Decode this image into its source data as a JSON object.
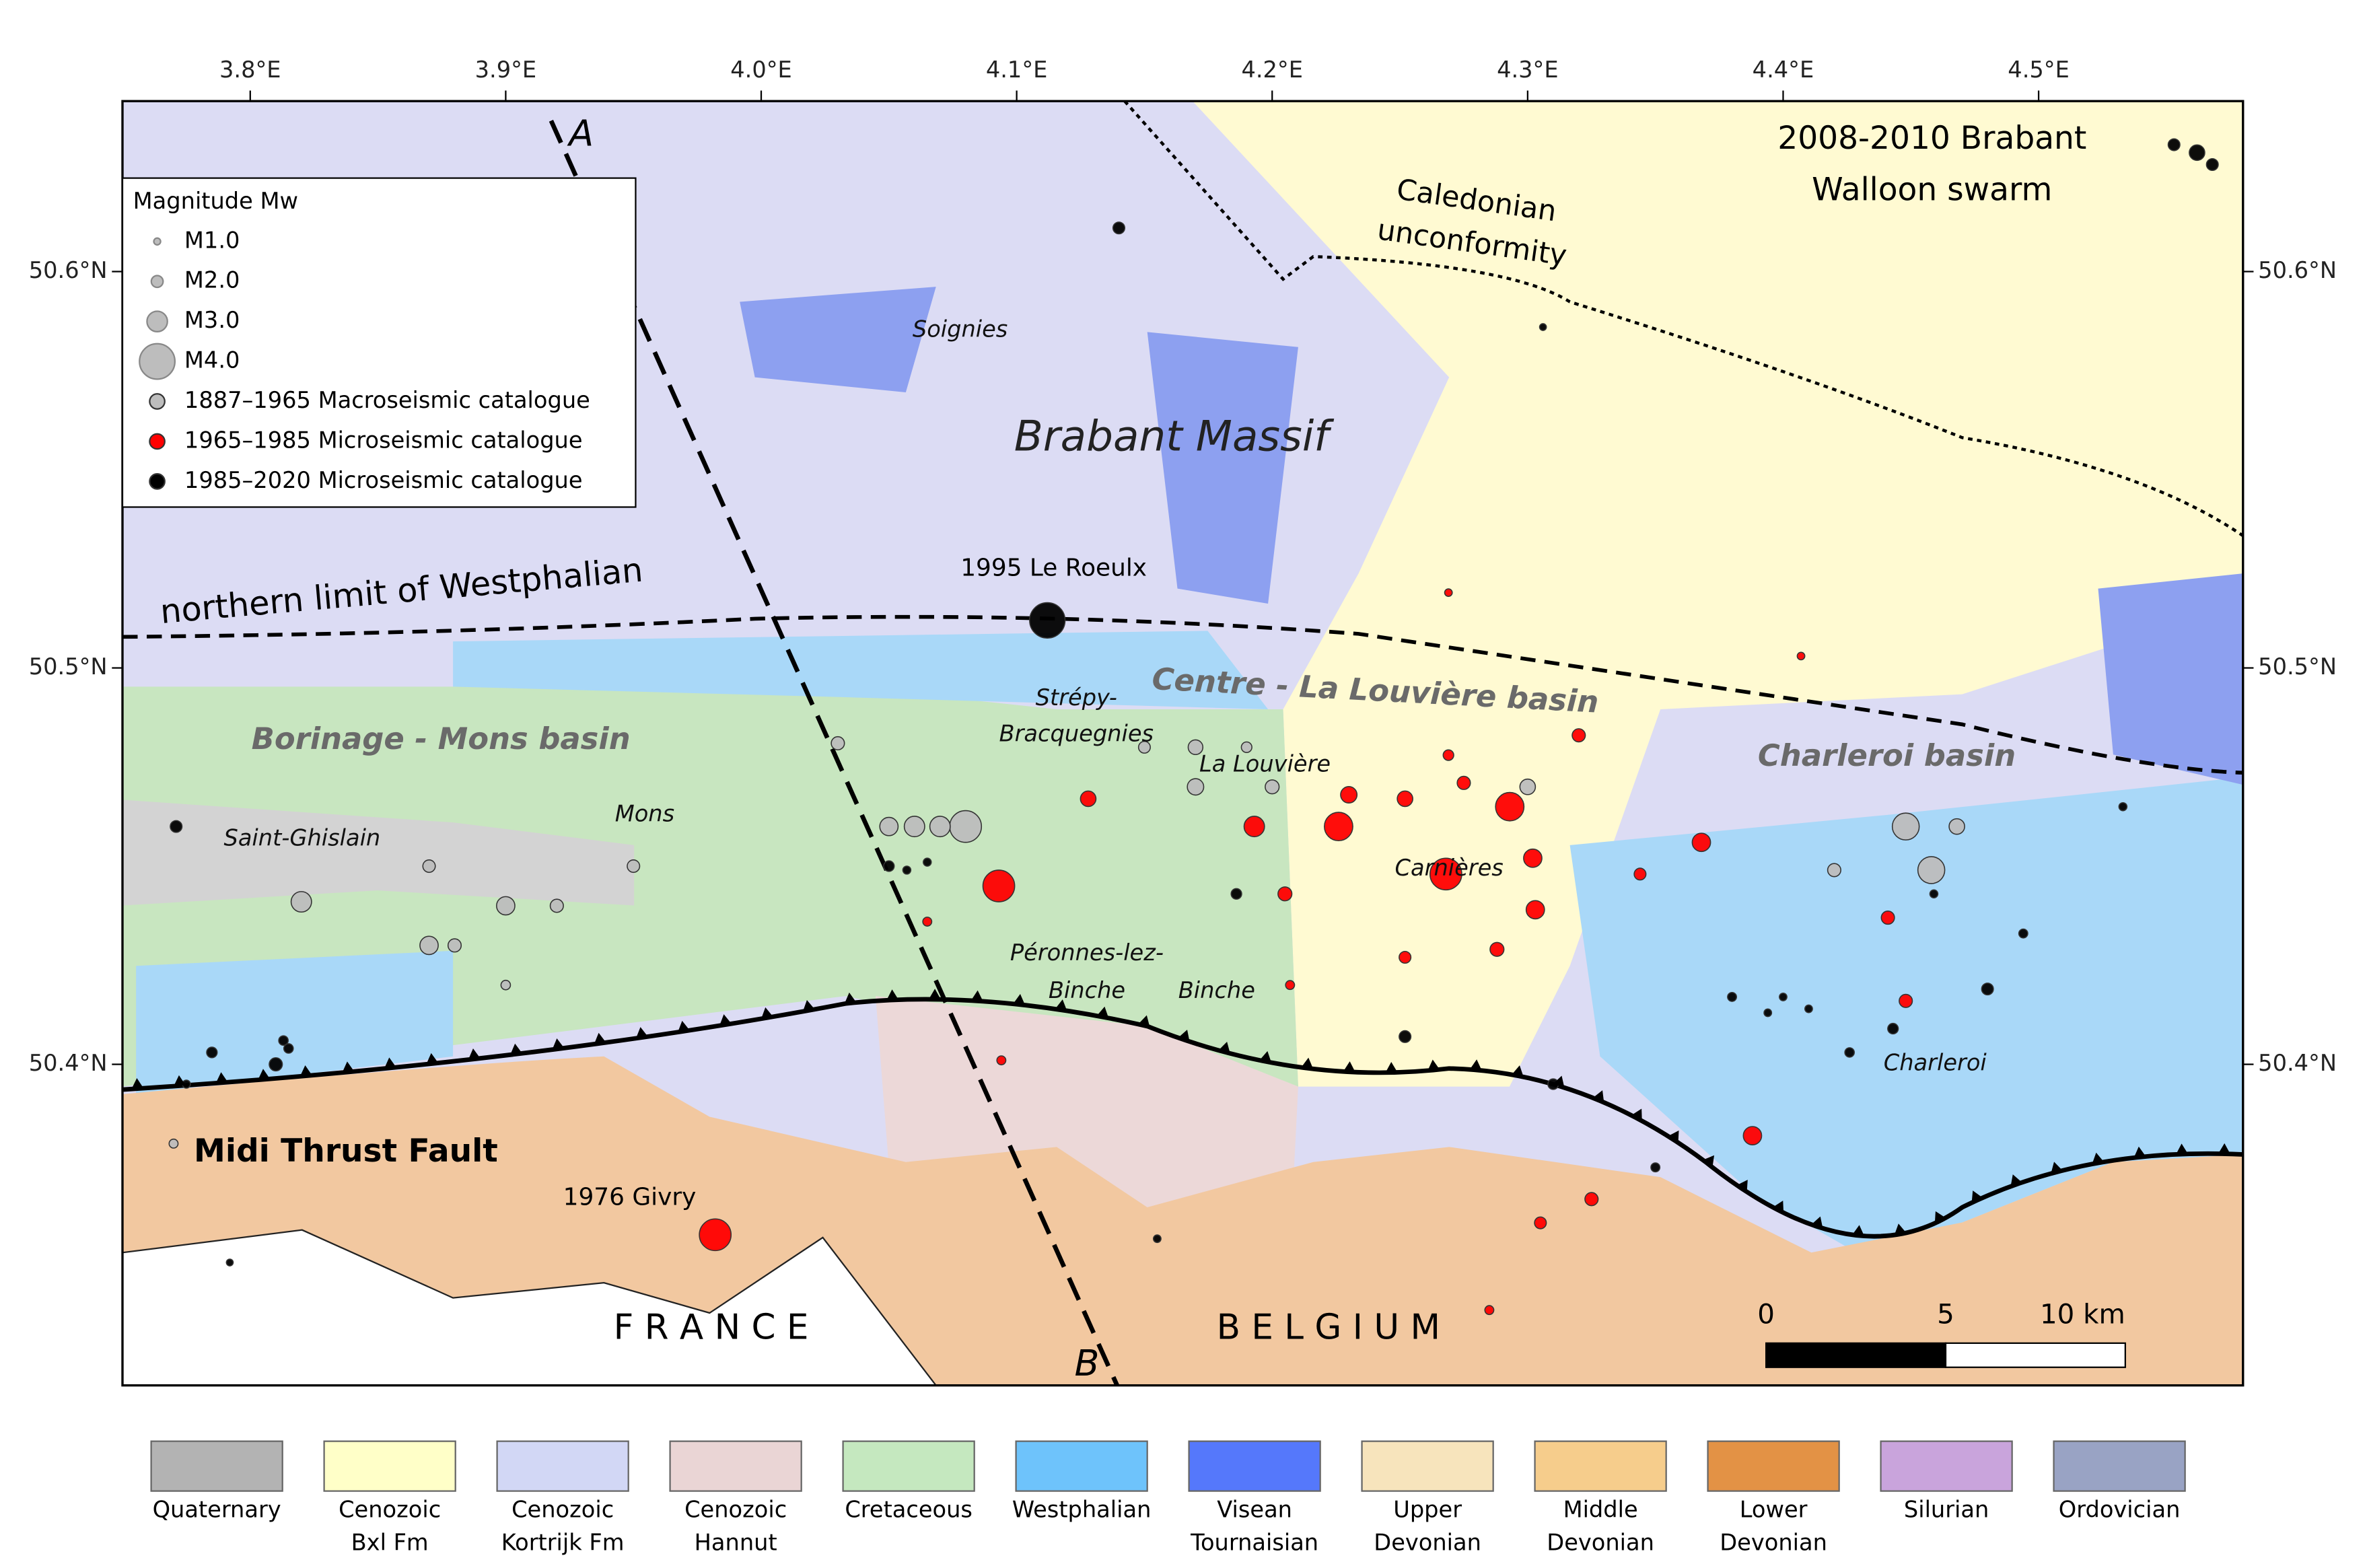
{
  "map": {
    "lon_range": [
      3.75,
      4.58
    ],
    "lat_range": [
      50.319,
      50.643
    ],
    "lon_ticks": [
      {
        "value": 3.8,
        "label": "3.8°E"
      },
      {
        "value": 3.9,
        "label": "3.9°E"
      },
      {
        "value": 4.0,
        "label": "4.0°E"
      },
      {
        "value": 4.1,
        "label": "4.1°E"
      },
      {
        "value": 4.2,
        "label": "4.2°E"
      },
      {
        "value": 4.3,
        "label": "4.3°E"
      },
      {
        "value": 4.4,
        "label": "4.4°E"
      },
      {
        "value": 4.5,
        "label": "4.5°E"
      }
    ],
    "lat_ticks": [
      {
        "value": 50.4,
        "label": "50.4°N"
      },
      {
        "value": 50.5,
        "label": "50.5°N"
      },
      {
        "value": 50.6,
        "label": "50.6°N"
      }
    ],
    "events": [
      [
        4.08,
        50.46,
        3.8,
        0
      ],
      [
        4.448,
        50.46,
        3.5,
        0
      ],
      [
        4.458,
        50.449,
        3.5,
        0
      ],
      [
        4.06,
        50.46,
        3.0,
        0
      ],
      [
        4.07,
        50.46,
        3.0,
        0
      ],
      [
        3.82,
        50.441,
        3.0,
        0
      ],
      [
        3.87,
        50.43,
        2.8,
        0
      ],
      [
        3.9,
        50.44,
        2.8,
        0
      ],
      [
        4.05,
        50.46,
        2.8,
        0
      ],
      [
        4.3,
        50.47,
        2.5,
        0
      ],
      [
        4.17,
        50.48,
        2.4,
        0
      ],
      [
        4.17,
        50.47,
        2.6,
        0
      ],
      [
        4.2,
        50.47,
        2.3,
        0
      ],
      [
        4.03,
        50.481,
        2.2,
        0
      ],
      [
        4.42,
        50.449,
        2.2,
        0
      ],
      [
        3.92,
        50.44,
        2.2,
        0
      ],
      [
        3.88,
        50.43,
        2.2,
        0
      ],
      [
        3.95,
        50.45,
        2.1,
        0
      ],
      [
        3.87,
        50.45,
        2.1,
        0
      ],
      [
        4.468,
        50.46,
        2.5,
        0
      ],
      [
        4.15,
        50.48,
        2.0,
        0
      ],
      [
        4.19,
        50.48,
        1.8,
        0
      ],
      [
        3.9,
        50.42,
        1.6,
        0
      ],
      [
        3.77,
        50.38,
        1.5,
        0
      ],
      [
        3.982,
        50.357,
        3.8,
        1
      ],
      [
        4.093,
        50.445,
        3.8,
        1
      ],
      [
        4.226,
        50.46,
        3.6,
        1
      ],
      [
        4.268,
        50.448,
        3.8,
        1
      ],
      [
        4.293,
        50.465,
        3.6,
        1
      ],
      [
        4.193,
        50.46,
        3.0,
        1
      ],
      [
        4.302,
        50.452,
        2.8,
        1
      ],
      [
        4.303,
        50.439,
        2.8,
        1
      ],
      [
        4.368,
        50.456,
        2.8,
        1
      ],
      [
        4.388,
        50.382,
        2.8,
        1
      ],
      [
        4.128,
        50.467,
        2.5,
        1
      ],
      [
        4.23,
        50.468,
        2.6,
        1
      ],
      [
        4.252,
        50.467,
        2.5,
        1
      ],
      [
        4.275,
        50.471,
        2.2,
        1
      ],
      [
        4.32,
        50.483,
        2.2,
        1
      ],
      [
        4.205,
        50.443,
        2.3,
        1
      ],
      [
        4.288,
        50.429,
        2.3,
        1
      ],
      [
        4.441,
        50.437,
        2.2,
        1
      ],
      [
        4.448,
        50.416,
        2.2,
        1
      ],
      [
        4.325,
        50.366,
        2.2,
        1
      ],
      [
        4.305,
        50.36,
        2.0,
        1
      ],
      [
        4.344,
        50.448,
        2.0,
        1
      ],
      [
        4.252,
        50.427,
        2.0,
        1
      ],
      [
        4.269,
        50.478,
        1.8,
        1
      ],
      [
        4.285,
        50.338,
        1.5,
        1
      ],
      [
        4.094,
        50.401,
        1.5,
        1
      ],
      [
        4.065,
        50.436,
        1.5,
        1
      ],
      [
        4.207,
        50.42,
        1.5,
        1
      ],
      [
        4.407,
        50.503,
        1.2,
        1
      ],
      [
        4.269,
        50.519,
        1.2,
        1
      ],
      [
        4.112,
        50.512,
        4.0,
        2
      ],
      [
        4.14,
        50.611,
        2.0,
        2
      ],
      [
        3.771,
        50.46,
        2.0,
        2
      ],
      [
        4.252,
        50.407,
        2.0,
        2
      ],
      [
        4.186,
        50.443,
        1.8,
        2
      ],
      [
        4.48,
        50.419,
        2.0,
        2
      ],
      [
        3.81,
        50.4,
        2.2,
        2
      ],
      [
        3.785,
        50.403,
        1.8,
        2
      ],
      [
        4.443,
        50.409,
        1.8,
        2
      ],
      [
        4.426,
        50.403,
        1.6,
        2
      ],
      [
        4.31,
        50.395,
        1.8,
        2
      ],
      [
        4.05,
        50.45,
        1.8,
        2
      ],
      [
        4.562,
        50.63,
        2.5,
        2
      ],
      [
        4.553,
        50.632,
        2.0,
        2
      ],
      [
        4.568,
        50.627,
        2.0,
        2
      ],
      [
        4.494,
        50.433,
        1.5,
        2
      ],
      [
        4.38,
        50.417,
        1.5,
        2
      ],
      [
        4.35,
        50.374,
        1.5,
        2
      ],
      [
        4.533,
        50.465,
        1.3,
        2
      ],
      [
        4.057,
        50.449,
        1.3,
        2
      ],
      [
        4.065,
        50.451,
        1.3,
        2
      ],
      [
        4.459,
        50.443,
        1.3,
        2
      ],
      [
        4.4,
        50.417,
        1.2,
        2
      ],
      [
        4.41,
        50.414,
        1.2,
        2
      ],
      [
        4.394,
        50.413,
        1.2,
        2
      ],
      [
        3.813,
        50.406,
        1.6,
        2
      ],
      [
        3.815,
        50.404,
        1.6,
        2
      ],
      [
        3.775,
        50.395,
        1.3,
        2
      ],
      [
        3.792,
        50.35,
        1.0,
        2
      ],
      [
        4.306,
        50.586,
        1.0,
        2
      ],
      [
        4.155,
        50.356,
        1.2,
        2
      ]
    ]
  },
  "legend": {
    "title": "Magnitude Mw",
    "sizes": [
      {
        "value": 1.0,
        "label": "M1.0"
      },
      {
        "value": 2.0,
        "label": "M2.0"
      },
      {
        "value": 3.0,
        "label": "M3.0"
      },
      {
        "value": 4.0,
        "label": "M4.0"
      }
    ],
    "catalogues": [
      {
        "name": "1887–1965 Macroseismic catalogue",
        "color": "#bdbdbd"
      },
      {
        "name": "1965–1985 Microseismic catalogue",
        "color": "#ff0000"
      },
      {
        "name": "1985–2020 Microseismic catalogue",
        "color": "#000000"
      }
    ]
  },
  "labels": {
    "swarm": [
      "2008-2010 Brabant",
      "Walloon swarm"
    ],
    "caledonian": [
      "Caledonian",
      "unconformity"
    ],
    "soignies": "Soignies",
    "brabant_massif": "Brabant Massif",
    "le_roeulx": "1995 Le Roeulx",
    "westphalian_limit": "northern limit of Westphalian",
    "centre_basin": "Centre - La Louvière basin",
    "borinage": "Borinage - Mons basin",
    "strepy": [
      "Strépy-",
      "Bracquegnies"
    ],
    "la_louviere": "La Louvière",
    "charleroi_basin": "Charleroi basin",
    "saint_ghislain": "Saint-Ghislain",
    "mons": "Mons",
    "carnieres": "Carnières",
    "peronnes": [
      "Péronnes-lez-",
      "Binche"
    ],
    "binche": "Binche",
    "charleroi": "Charleroi",
    "midi": "Midi Thrust Fault",
    "givry": "1976 Givry",
    "france": "F R A N C E",
    "belgium": "B E L G I U M",
    "a": "A",
    "b": "B"
  },
  "scale_bar": {
    "ticks": [
      0,
      5,
      {
        "value": 10,
        "label": "10 km"
      }
    ]
  },
  "geology_legend": [
    {
      "label": [
        "Quaternary"
      ],
      "color": "#b3b3b3"
    },
    {
      "label": [
        "Cenozoic",
        "Bxl Fm"
      ],
      "color": "#ffffc8"
    },
    {
      "label": [
        "Cenozoic",
        "Kortrijk Fm"
      ],
      "color": "#d2d7f5"
    },
    {
      "label": [
        "Cenozoic",
        "Hannut"
      ],
      "color": "#ead5d5"
    },
    {
      "label": [
        "Cretaceous"
      ],
      "color": "#c5e8bf"
    },
    {
      "label": [
        "Westphalian"
      ],
      "color": "#6ec3fb"
    },
    {
      "label": [
        "Visean",
        "Tournaisian"
      ],
      "color": "#5578fb"
    },
    {
      "label": [
        "Upper",
        "Devonian"
      ],
      "color": "#f7e4bc"
    },
    {
      "label": [
        "Middle",
        "Devonian"
      ],
      "color": "#f6cd8c"
    },
    {
      "label": [
        "Lower",
        "Devonian"
      ],
      "color": "#e39245"
    },
    {
      "label": [
        "Silurian"
      ],
      "color": "#c9a4dc"
    },
    {
      "label": [
        "Ordovician"
      ],
      "color": "#99a3c4"
    }
  ]
}
